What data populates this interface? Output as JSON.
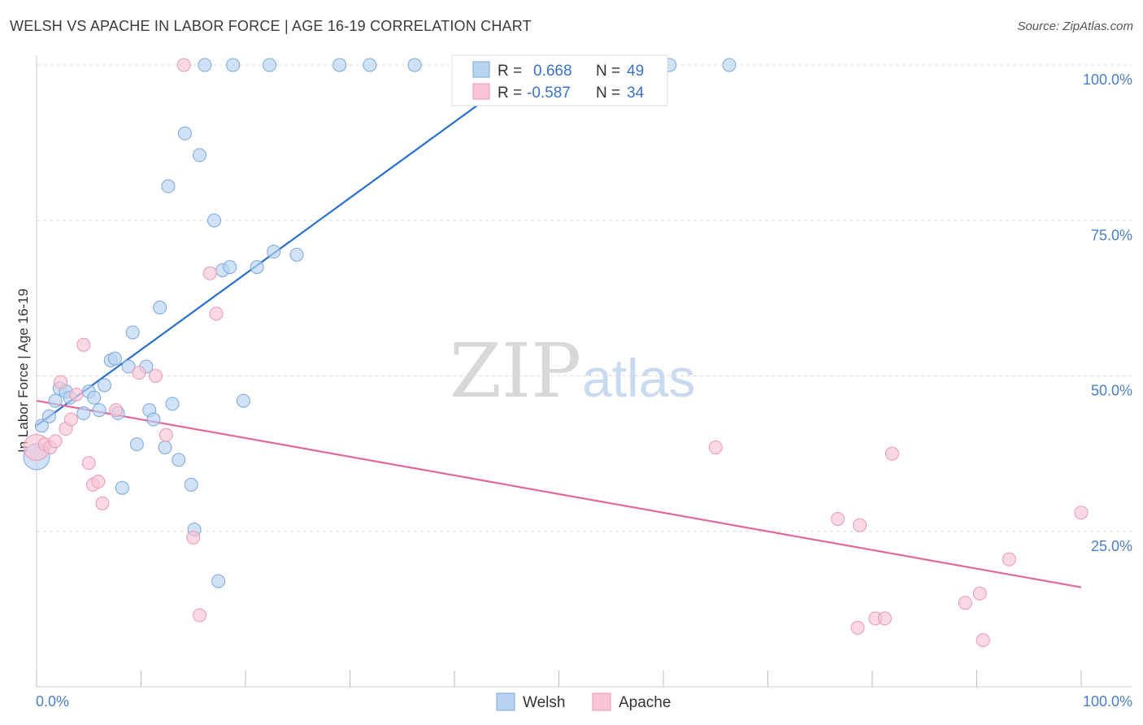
{
  "title": "WELSH VS APACHE IN LABOR FORCE | AGE 16-19 CORRELATION CHART",
  "source": "Source: ZipAtlas.com",
  "watermark": {
    "zip": "ZIP",
    "atlas": "atlas"
  },
  "legend": {
    "rows": [
      {
        "r_label": "R =",
        "r_value": "0.668",
        "n_label": "N =",
        "n_value": "49"
      },
      {
        "r_label": "R =",
        "r_value": "-0.587",
        "n_label": "N =",
        "n_value": "34"
      }
    ]
  },
  "bottom_legend": {
    "welsh": "Welsh",
    "apache": "Apache"
  },
  "colors": {
    "welsh_fill": "#b9d3f2",
    "welsh_stroke": "#7aa7dc",
    "welsh_line": "#2a6fcf",
    "apache_fill": "#f8c5d6",
    "apache_stroke": "#ec97b3",
    "apache_line": "#e0689a",
    "axis_label": "#4a7fc8",
    "grid": "#d9d9d9"
  },
  "chart_data": {
    "type": "scatter",
    "title": "WELSH VS APACHE IN LABOR FORCE | AGE 16-19 CORRELATION CHART",
    "xlabel": "",
    "ylabel": "In Labor Force | Age 16-19",
    "xlim": [
      0,
      100
    ],
    "ylim": [
      0,
      100
    ],
    "x_tick_labels": [
      "0.0%",
      "100.0%"
    ],
    "y_ticks": [
      25,
      50,
      75,
      100
    ],
    "y_tick_labels": [
      "25.0%",
      "50.0%",
      "75.0%",
      "100.0%"
    ],
    "grid": true,
    "legend_position": "top-center",
    "series": [
      {
        "name": "Welsh",
        "r": 0.668,
        "n": 49,
        "trend": [
          [
            0,
            42
          ],
          [
            47.5,
            100
          ]
        ],
        "points": [
          [
            0.0,
            37
          ],
          [
            0.5,
            42
          ],
          [
            1.2,
            43.5
          ],
          [
            1.8,
            46
          ],
          [
            2.2,
            48
          ],
          [
            2.8,
            47.5
          ],
          [
            3.2,
            46.5
          ],
          [
            4.5,
            44
          ],
          [
            5.0,
            47.5
          ],
          [
            5.5,
            46.5
          ],
          [
            6.0,
            44.5
          ],
          [
            6.5,
            48.5
          ],
          [
            7.1,
            52.5
          ],
          [
            7.5,
            52.8
          ],
          [
            7.8,
            44
          ],
          [
            8.2,
            32
          ],
          [
            8.8,
            51.5
          ],
          [
            9.2,
            57
          ],
          [
            9.6,
            39
          ],
          [
            10.5,
            51.5
          ],
          [
            10.8,
            44.5
          ],
          [
            11.2,
            43
          ],
          [
            11.8,
            61
          ],
          [
            12.3,
            38.5
          ],
          [
            12.6,
            80.5
          ],
          [
            13.0,
            45.5
          ],
          [
            13.6,
            36.5
          ],
          [
            14.2,
            89
          ],
          [
            14.8,
            32.5
          ],
          [
            15.1,
            25.3
          ],
          [
            15.6,
            85.5
          ],
          [
            16.1,
            100
          ],
          [
            17.0,
            75
          ],
          [
            17.4,
            17
          ],
          [
            17.8,
            67
          ],
          [
            18.5,
            67.5
          ],
          [
            18.8,
            100
          ],
          [
            19.8,
            46
          ],
          [
            21.1,
            67.5
          ],
          [
            22.3,
            100
          ],
          [
            22.7,
            70
          ],
          [
            24.9,
            69.5
          ],
          [
            29.0,
            100
          ],
          [
            31.9,
            100
          ],
          [
            36.2,
            100
          ],
          [
            60.6,
            100
          ],
          [
            66.3,
            100
          ],
          [
            50.0,
            100
          ],
          [
            46.5,
            100
          ]
        ]
      },
      {
        "name": "Apache",
        "r": -0.587,
        "n": 34,
        "trend": [
          [
            0,
            46
          ],
          [
            100,
            16
          ]
        ],
        "points": [
          [
            0.0,
            38.5
          ],
          [
            0.8,
            39
          ],
          [
            1.3,
            38.5
          ],
          [
            1.8,
            39.5
          ],
          [
            2.3,
            49
          ],
          [
            2.8,
            41.5
          ],
          [
            3.3,
            43
          ],
          [
            3.8,
            47
          ],
          [
            4.5,
            55
          ],
          [
            5.0,
            36
          ],
          [
            5.4,
            32.5
          ],
          [
            5.9,
            33
          ],
          [
            6.3,
            29.5
          ],
          [
            7.6,
            44.5
          ],
          [
            9.8,
            50.5
          ],
          [
            11.4,
            50
          ],
          [
            12.4,
            40.5
          ],
          [
            14.1,
            100
          ],
          [
            15.0,
            24
          ],
          [
            15.6,
            11.5
          ],
          [
            16.6,
            66.5
          ],
          [
            17.2,
            60
          ],
          [
            65.0,
            38.5
          ],
          [
            76.7,
            27
          ],
          [
            78.6,
            9.5
          ],
          [
            78.8,
            26
          ],
          [
            80.3,
            11
          ],
          [
            81.2,
            11
          ],
          [
            81.9,
            37.5
          ],
          [
            88.9,
            13.5
          ],
          [
            90.3,
            15
          ],
          [
            90.6,
            7.5
          ],
          [
            93.1,
            20.5
          ],
          [
            100.0,
            28
          ]
        ]
      }
    ]
  }
}
